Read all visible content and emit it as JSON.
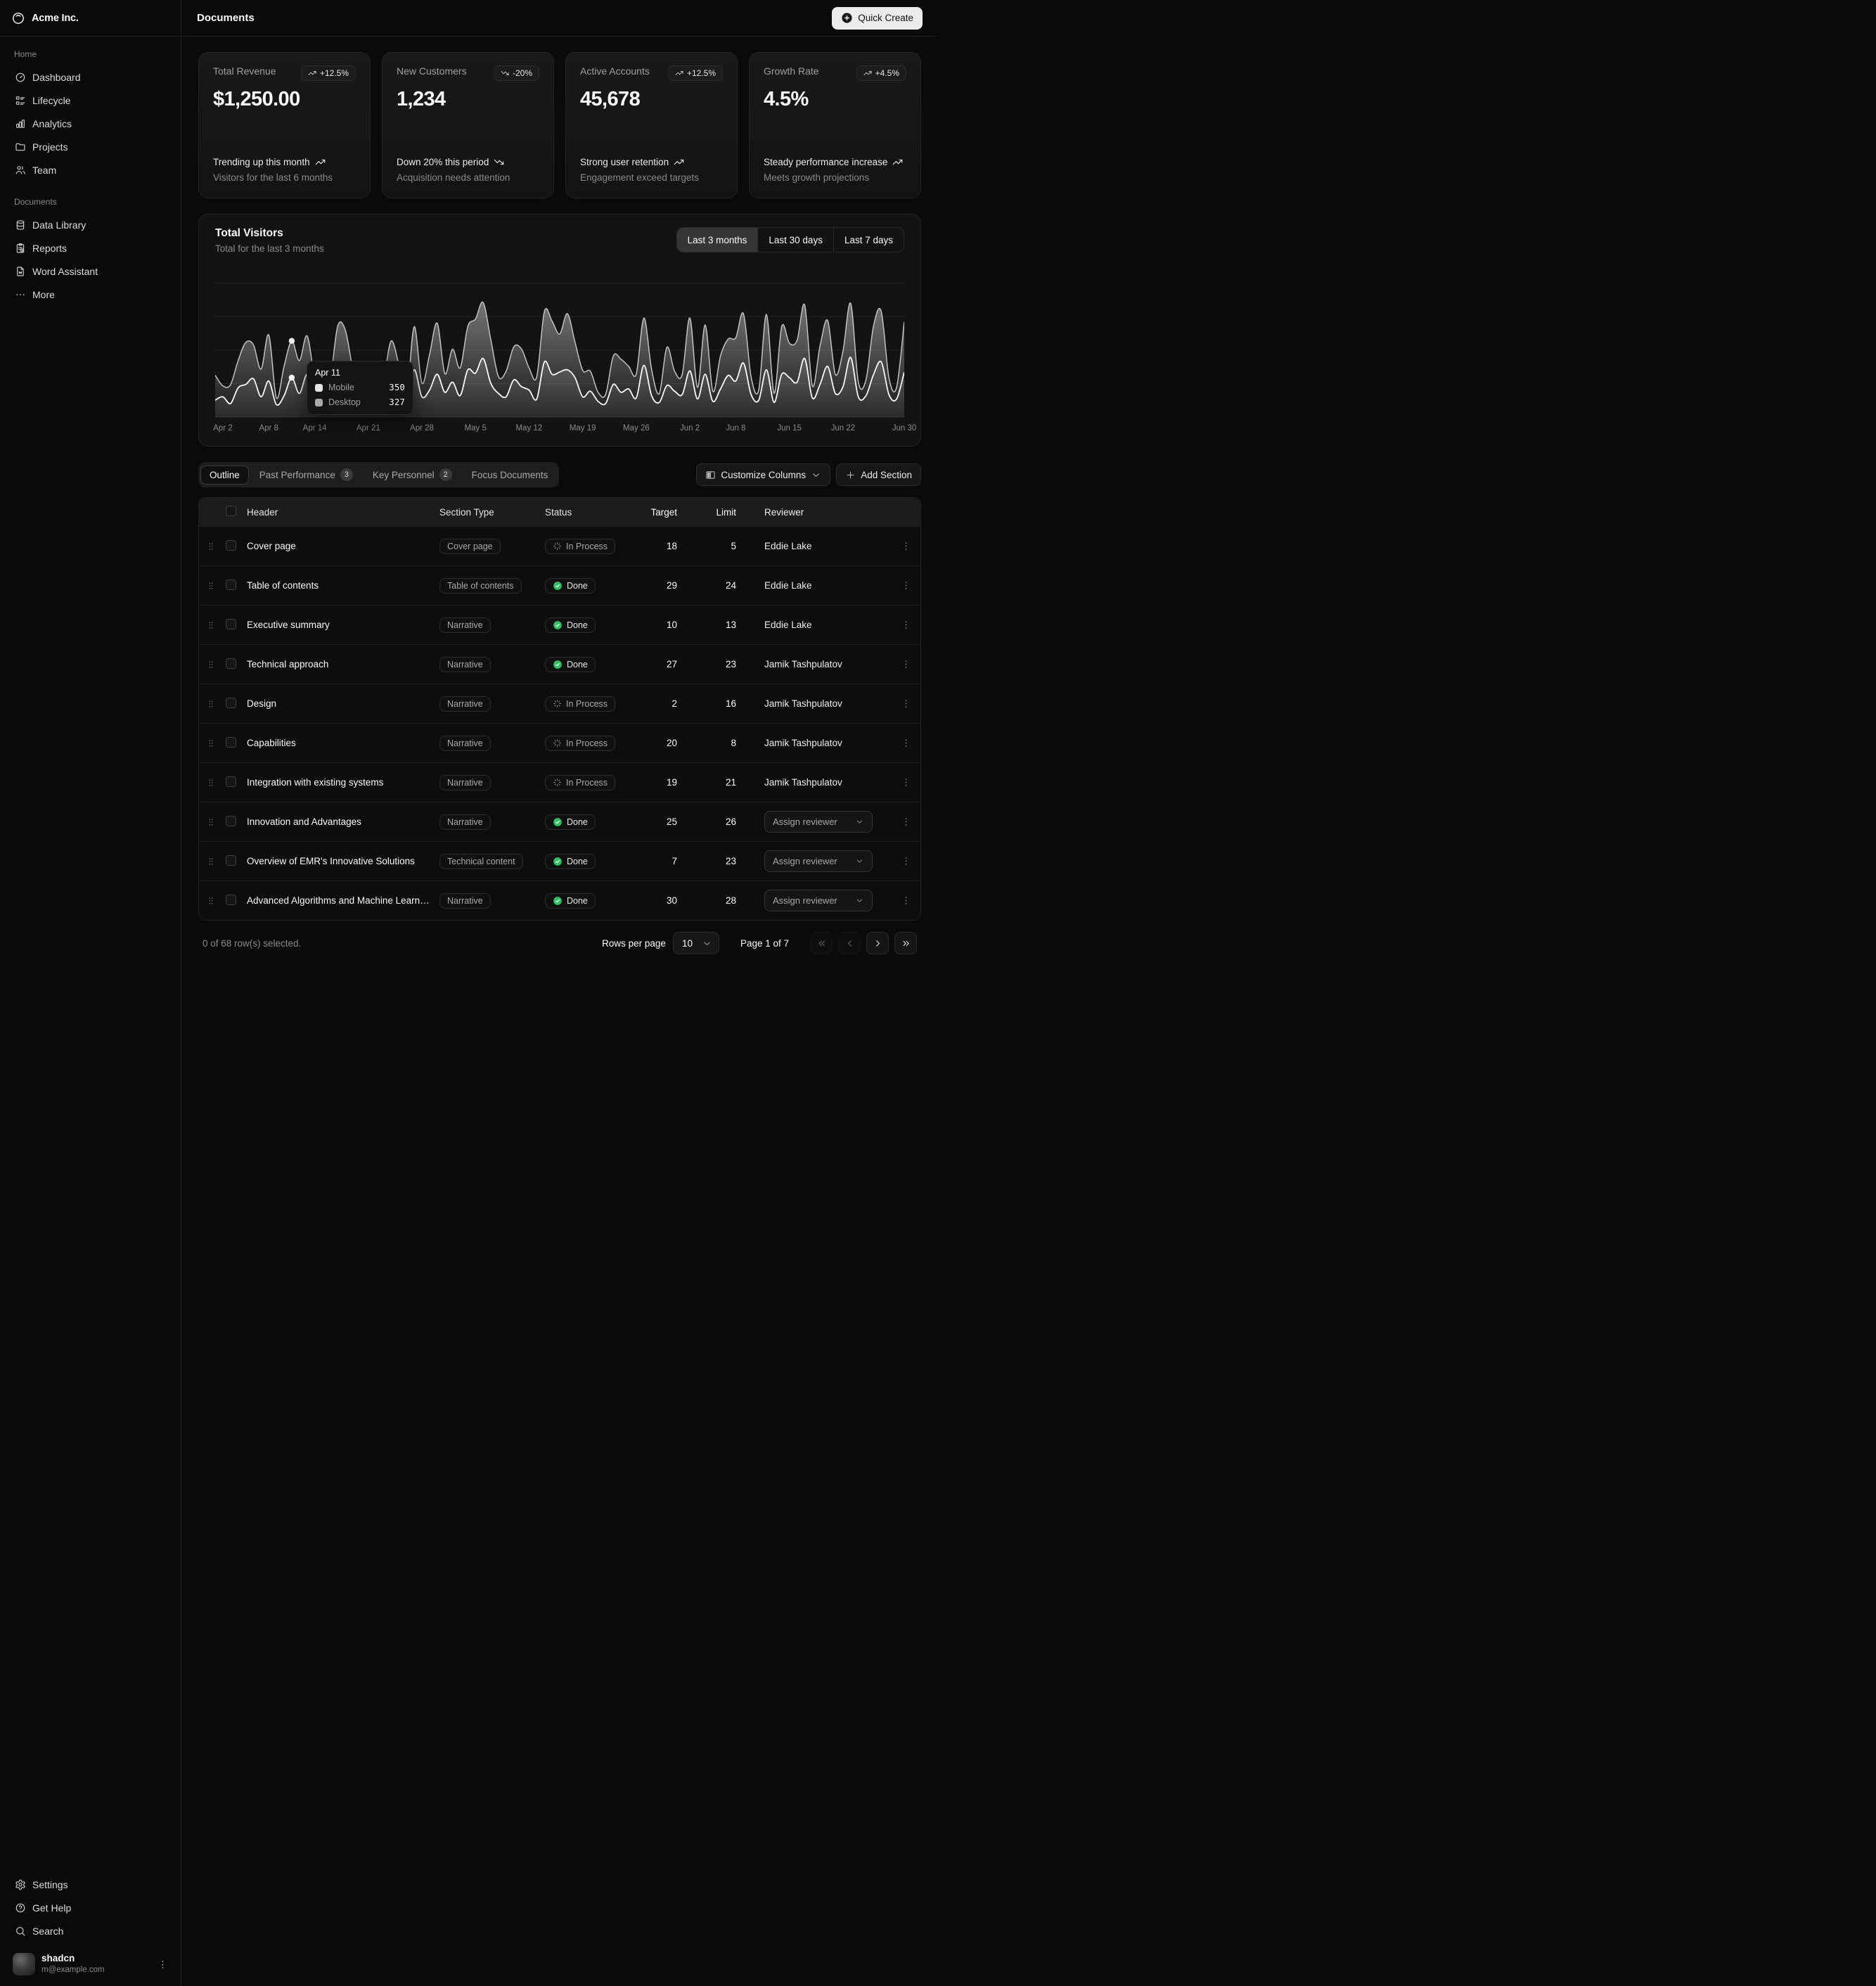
{
  "brand": {
    "name": "Acme Inc."
  },
  "sidebar": {
    "groups": [
      {
        "label": "Home",
        "items": [
          {
            "label": "Dashboard",
            "icon": "dashboard"
          },
          {
            "label": "Lifecycle",
            "icon": "lifecycle"
          },
          {
            "label": "Analytics",
            "icon": "analytics"
          },
          {
            "label": "Projects",
            "icon": "folder"
          },
          {
            "label": "Team",
            "icon": "users"
          }
        ]
      },
      {
        "label": "Documents",
        "items": [
          {
            "label": "Data Library",
            "icon": "database"
          },
          {
            "label": "Reports",
            "icon": "report"
          },
          {
            "label": "Word Assistant",
            "icon": "file-word"
          },
          {
            "label": "More",
            "icon": "more"
          }
        ]
      }
    ],
    "footer_items": [
      {
        "label": "Settings",
        "icon": "settings"
      },
      {
        "label": "Get Help",
        "icon": "help"
      },
      {
        "label": "Search",
        "icon": "search"
      }
    ],
    "user": {
      "name": "shadcn",
      "email": "m@example.com"
    }
  },
  "header": {
    "title": "Documents",
    "quick_create_label": "Quick Create"
  },
  "stats": [
    {
      "label": "Total Revenue",
      "value": "$1,250.00",
      "badge": "+12.5%",
      "trend": "up",
      "line1": "Trending up this month",
      "line2": "Visitors for the last 6 months"
    },
    {
      "label": "New Customers",
      "value": "1,234",
      "badge": "-20%",
      "trend": "down",
      "line1": "Down 20% this period",
      "line2": "Acquisition needs attention"
    },
    {
      "label": "Active Accounts",
      "value": "45,678",
      "badge": "+12.5%",
      "trend": "up",
      "line1": "Strong user retention",
      "line2": "Engagement exceed targets"
    },
    {
      "label": "Growth Rate",
      "value": "4.5%",
      "badge": "+4.5%",
      "trend": "up",
      "line1": "Steady performance increase",
      "line2": "Meets growth projections"
    }
  ],
  "chart": {
    "title": "Total Visitors",
    "subtitle": "Total for the last 3 months",
    "ranges": [
      {
        "label": "Last 3 months",
        "active": true
      },
      {
        "label": "Last 30 days",
        "active": false
      },
      {
        "label": "Last 7 days",
        "active": false
      }
    ],
    "x_labels": [
      {
        "label": "Apr 2",
        "day": 1
      },
      {
        "label": "Apr 8",
        "day": 7
      },
      {
        "label": "Apr 14",
        "day": 13
      },
      {
        "label": "Apr 21",
        "day": 20
      },
      {
        "label": "Apr 28",
        "day": 27
      },
      {
        "label": "May 5",
        "day": 34
      },
      {
        "label": "May 12",
        "day": 41
      },
      {
        "label": "May 19",
        "day": 48
      },
      {
        "label": "May 26",
        "day": 55
      },
      {
        "label": "Jun 2",
        "day": 62
      },
      {
        "label": "Jun 8",
        "day": 68
      },
      {
        "label": "Jun 15",
        "day": 75
      },
      {
        "label": "Jun 22",
        "day": 82
      },
      {
        "label": "Jun 30",
        "day": 90
      }
    ],
    "tooltip": {
      "date": "Apr 11",
      "day_index": 10,
      "rows": [
        {
          "label": "Mobile",
          "value": "350",
          "swatch": "#e6e6e6"
        },
        {
          "label": "Desktop",
          "value": "327",
          "swatch": "#a8a8a8"
        }
      ]
    }
  },
  "chart_data": {
    "type": "area",
    "stacked": true,
    "x_unit": "day",
    "x_start": "2024-04-01",
    "x_end": "2024-06-30",
    "title": "Total Visitors",
    "ylim": [
      0,
      1000
    ],
    "grid": "horizontal",
    "legend": "none",
    "series": [
      {
        "name": "Mobile",
        "values": [
          150,
          180,
          120,
          260,
          290,
          340,
          180,
          320,
          110,
          190,
          350,
          210,
          380,
          220,
          170,
          190,
          360,
          410,
          180,
          150,
          200,
          170,
          230,
          290,
          250,
          130,
          420,
          180,
          240,
          380,
          220,
          310,
          190,
          420,
          390,
          520,
          300,
          210,
          180,
          330,
          270,
          240,
          160,
          490,
          380,
          400,
          420,
          350,
          180,
          230,
          140,
          120,
          290,
          220,
          250,
          170,
          460,
          190,
          130,
          280,
          230,
          200,
          410,
          160,
          380,
          140,
          250,
          370,
          320,
          480,
          200,
          150,
          420,
          130,
          380,
          350,
          310,
          520,
          170,
          290,
          450,
          210,
          270,
          530,
          180,
          190,
          380,
          490,
          200,
          160,
          400
        ]
      },
      {
        "name": "Desktop",
        "values": [
          222,
          97,
          167,
          242,
          373,
          301,
          245,
          409,
          59,
          261,
          327,
          292,
          342,
          137,
          120,
          138,
          446,
          364,
          243,
          89,
          137,
          224,
          138,
          387,
          215,
          75,
          383,
          122,
          315,
          454,
          165,
          293,
          247,
          385,
          481,
          498,
          388,
          149,
          227,
          293,
          335,
          197,
          197,
          448,
          473,
          338,
          499,
          315,
          235,
          177,
          82,
          81,
          252,
          294,
          201,
          213,
          420,
          233,
          78,
          340,
          178,
          178,
          470,
          103,
          439,
          88,
          294,
          323,
          385,
          438,
          155,
          92,
          492,
          81,
          426,
          307,
          371,
          475,
          107,
          341,
          408,
          169,
          317,
          480,
          132,
          141,
          434,
          448,
          149,
          103,
          446
        ]
      }
    ]
  },
  "table_tabs": {
    "tabs": [
      {
        "label": "Outline",
        "active": true
      },
      {
        "label": "Past Performance",
        "badge": "3"
      },
      {
        "label": "Key Personnel",
        "badge": "2"
      },
      {
        "label": "Focus Documents"
      }
    ],
    "customize_label": "Customize Columns",
    "add_label": "Add Section"
  },
  "table": {
    "columns": [
      "Header",
      "Section Type",
      "Status",
      "Target",
      "Limit",
      "Reviewer"
    ],
    "rows": [
      {
        "header": "Cover page",
        "type": "Cover page",
        "status": "In Process",
        "target": "18",
        "limit": "5",
        "reviewer": "Eddie Lake",
        "assign": false
      },
      {
        "header": "Table of contents",
        "type": "Table of contents",
        "status": "Done",
        "target": "29",
        "limit": "24",
        "reviewer": "Eddie Lake",
        "assign": false
      },
      {
        "header": "Executive summary",
        "type": "Narrative",
        "status": "Done",
        "target": "10",
        "limit": "13",
        "reviewer": "Eddie Lake",
        "assign": false
      },
      {
        "header": "Technical approach",
        "type": "Narrative",
        "status": "Done",
        "target": "27",
        "limit": "23",
        "reviewer": "Jamik Tashpulatov",
        "assign": false
      },
      {
        "header": "Design",
        "type": "Narrative",
        "status": "In Process",
        "target": "2",
        "limit": "16",
        "reviewer": "Jamik Tashpulatov",
        "assign": false
      },
      {
        "header": "Capabilities",
        "type": "Narrative",
        "status": "In Process",
        "target": "20",
        "limit": "8",
        "reviewer": "Jamik Tashpulatov",
        "assign": false
      },
      {
        "header": "Integration with existing systems",
        "type": "Narrative",
        "status": "In Process",
        "target": "19",
        "limit": "21",
        "reviewer": "Jamik Tashpulatov",
        "assign": false
      },
      {
        "header": "Innovation and Advantages",
        "type": "Narrative",
        "status": "Done",
        "target": "25",
        "limit": "26",
        "reviewer": "Assign reviewer",
        "assign": true
      },
      {
        "header": "Overview of EMR's Innovative Solutions",
        "type": "Technical content",
        "status": "Done",
        "target": "7",
        "limit": "23",
        "reviewer": "Assign reviewer",
        "assign": true
      },
      {
        "header": "Advanced Algorithms and Machine Learning",
        "type": "Narrative",
        "status": "Done",
        "target": "30",
        "limit": "28",
        "reviewer": "Assign reviewer",
        "assign": true
      }
    ]
  },
  "table_footer": {
    "selected": "0 of 68 row(s) selected.",
    "rows_per_page_label": "Rows per page",
    "rows_per_page_value": "10",
    "page_label": "Page 1 of 7"
  },
  "colors": {
    "done_green": "#2dc25e",
    "line_mobile": "#fafafa",
    "line_total": "#c2c2c2",
    "accent": "#fafafa"
  }
}
